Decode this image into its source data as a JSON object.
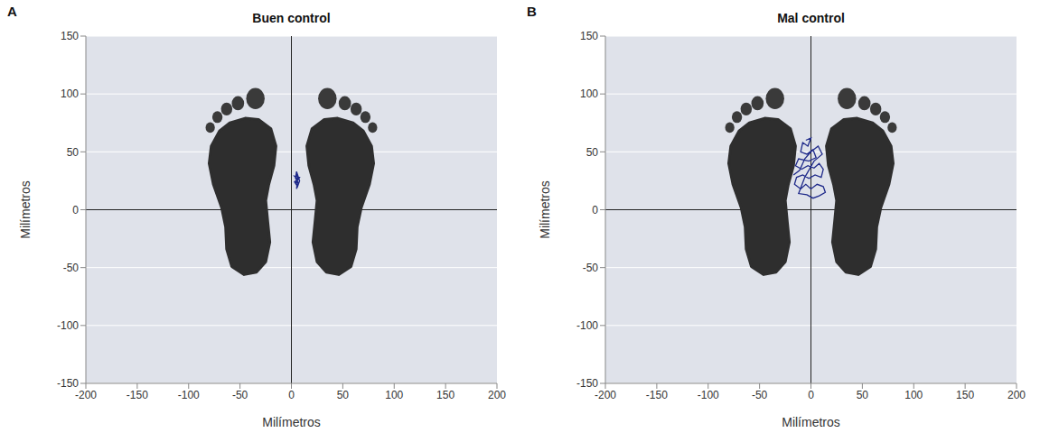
{
  "chart_data": [
    {
      "type": "line",
      "panel_label": "A",
      "title": "Buen control",
      "x_label": "Milímetros",
      "y_label": "Milímetros",
      "xlim": [
        -200,
        200
      ],
      "xticks": [
        -200,
        -150,
        -100,
        -50,
        0,
        50,
        100,
        150,
        200
      ],
      "ylim": [
        -150,
        150
      ],
      "yticks": [
        -150,
        -100,
        -50,
        0,
        50,
        100,
        150
      ],
      "grid": true,
      "color": "#1f2a8a",
      "x": [
        4,
        6,
        5,
        7,
        3,
        6,
        8,
        5,
        4,
        7,
        5,
        6,
        3,
        8,
        5
      ],
      "values": [
        22,
        28,
        31,
        27,
        24,
        20,
        25,
        33,
        27,
        23,
        18,
        26,
        29,
        28,
        24
      ]
    },
    {
      "type": "line",
      "panel_label": "B",
      "title": "Mal control",
      "x_label": "Milímetros",
      "y_label": "Milímetros",
      "xlim": [
        -200,
        200
      ],
      "xticks": [
        -200,
        -150,
        -100,
        -50,
        0,
        50,
        100,
        150,
        200
      ],
      "ylim": [
        -150,
        150
      ],
      "yticks": [
        -150,
        -100,
        -50,
        0,
        50,
        100,
        150
      ],
      "grid": true,
      "color": "#1f2a8a",
      "x": [
        -5,
        0,
        -3,
        -8,
        -10,
        -4,
        2,
        5,
        -2,
        -12,
        -15,
        -9,
        -3,
        3,
        8,
        12,
        10,
        4,
        -2,
        -8,
        -14,
        -16,
        -10,
        -5,
        0,
        6,
        12,
        14,
        8,
        2,
        -4,
        -12,
        -6,
        3,
        11,
        7,
        0,
        -6,
        -11,
        -17
      ],
      "values": [
        60,
        62,
        55,
        58,
        50,
        48,
        52,
        45,
        42,
        44,
        38,
        35,
        38,
        36,
        40,
        35,
        28,
        30,
        27,
        30,
        28,
        22,
        18,
        22,
        18,
        22,
        20,
        15,
        12,
        10,
        13,
        14,
        28,
        42,
        48,
        55,
        50,
        44,
        34,
        30
      ]
    }
  ]
}
